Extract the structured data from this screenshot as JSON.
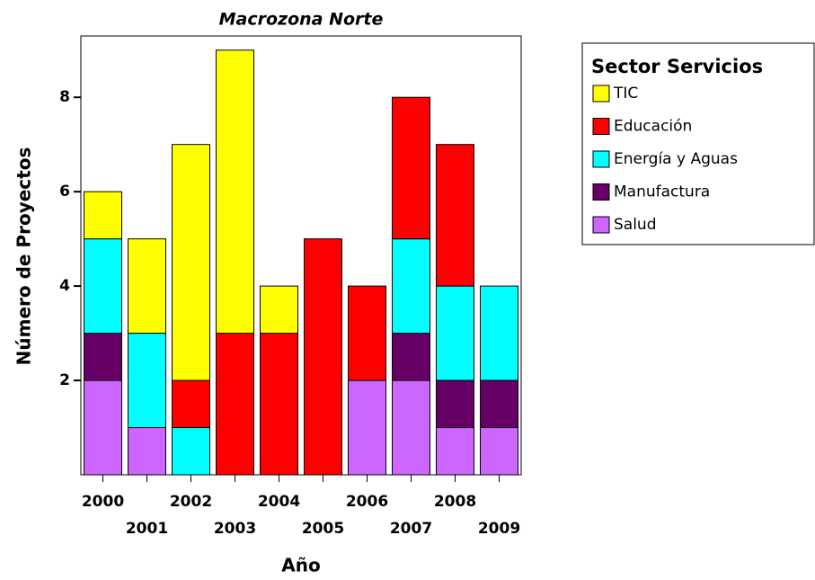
{
  "chart_data": {
    "type": "stacked_bar",
    "title": "Macrozona Norte",
    "x_label": "Año",
    "y_label": "Número de Proyectos",
    "legend_title": "Sector Servicios",
    "categories": [
      "2000",
      "2001",
      "2002",
      "2003",
      "2004",
      "2005",
      "2006",
      "2007",
      "2008",
      "2009"
    ],
    "series": [
      {
        "name": "TIC",
        "color": "#ffff00",
        "values": [
          1,
          2,
          5,
          6,
          1,
          0,
          0,
          0,
          0,
          0
        ]
      },
      {
        "name": "Educación",
        "color": "#ff0000",
        "values": [
          0,
          0,
          1,
          3,
          3,
          5,
          2,
          3,
          3,
          0
        ]
      },
      {
        "name": "Energía y Aguas",
        "color": "#00ffff",
        "values": [
          2,
          2,
          1,
          0,
          0,
          0,
          0,
          2,
          2,
          2
        ]
      },
      {
        "name": "Manufactura",
        "color": "#660066",
        "values": [
          1,
          0,
          0,
          0,
          0,
          0,
          0,
          1,
          1,
          1
        ]
      },
      {
        "name": "Salud",
        "color": "#cc66ff",
        "values": [
          2,
          1,
          0,
          0,
          0,
          0,
          2,
          2,
          1,
          1
        ]
      }
    ],
    "ylim": [
      0,
      9.3
    ],
    "yticks": [
      2,
      4,
      6,
      8
    ],
    "legend": "right"
  }
}
